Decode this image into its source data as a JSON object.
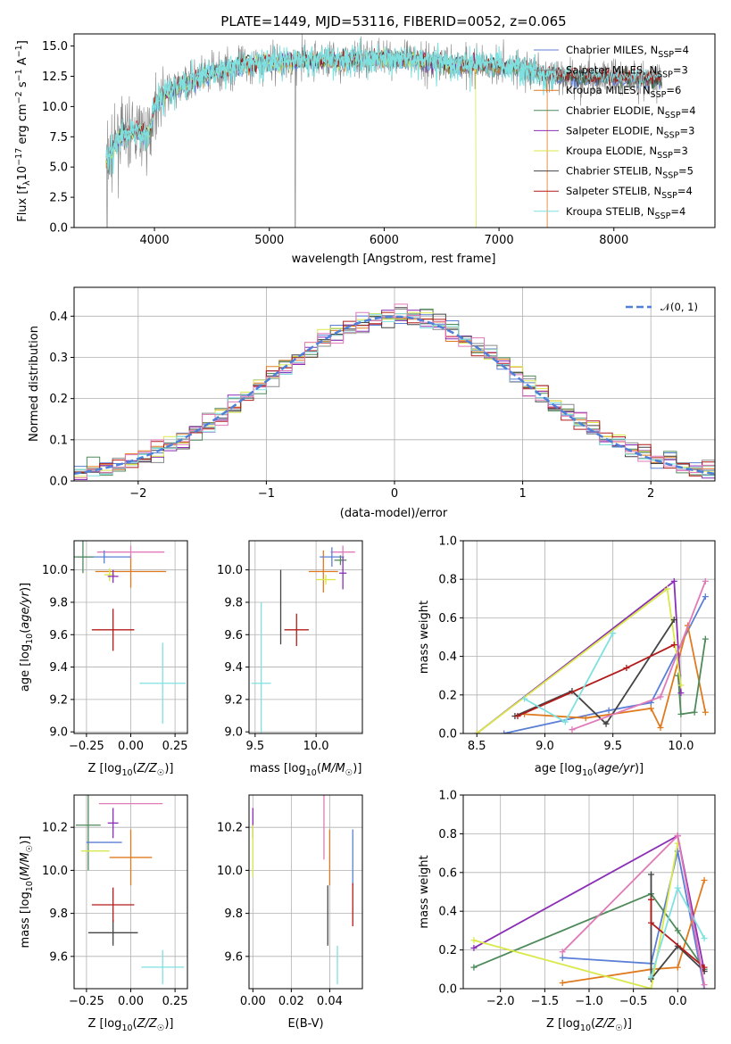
{
  "colors": {
    "chabrier_miles": "#5b7fd6",
    "salpeter_miles": "#8a8a8a",
    "kroupa_miles": "#e07a1f",
    "chabrier_elodie": "#4f8a5a",
    "salpeter_elodie": "#8b2fb5",
    "kroupa_elodie": "#d9e84a",
    "chabrier_stelib": "#444444",
    "salpeter_stelib": "#b31b1b",
    "kroupa_stelib": "#7fe0e0",
    "pink": "#e07ab8",
    "normal_curve": "#4f80d9"
  },
  "chart_data": [
    {
      "id": "spectrum",
      "type": "line",
      "title": "PLATE=1449, MJD=53116, FIBERID=0052, z=0.065",
      "xlabel": "wavelength [Angstrom, rest frame]",
      "ylabel": "Flux [f_λ 10^-17 erg cm^-2 s^-1 A^-1]",
      "xlim": [
        3300,
        8880
      ],
      "ylim": [
        0,
        16
      ],
      "xticks": [
        "4000",
        "5000",
        "6000",
        "7000",
        "8000"
      ],
      "yticks": [
        "0.0",
        "2.5",
        "5.0",
        "7.5",
        "10.0",
        "12.5",
        "15.0"
      ],
      "legend_position": "upper-right",
      "legend": [
        "Chabrier MILES, N_SSP=4",
        "Salpeter MILES, N_SSP=3",
        "Kroupa MILES, N_SSP=6",
        "Chabrier ELODIE, N_SSP=4",
        "Salpeter ELODIE, N_SSP=3",
        "Kroupa ELODIE, N_SSP=3",
        "Chabrier STELIB, N_SSP=5",
        "Salpeter STELIB, N_SSP=4",
        "Kroupa STELIB, N_SSP=4"
      ],
      "continuum": [
        [
          3580,
          5.5
        ],
        [
          3700,
          7.5
        ],
        [
          3850,
          8.0
        ],
        [
          3950,
          7.5
        ],
        [
          4000,
          10.0
        ],
        [
          4100,
          11.2
        ],
        [
          4300,
          12.0
        ],
        [
          4500,
          12.8
        ],
        [
          4800,
          13.5
        ],
        [
          5000,
          13.6
        ],
        [
          5300,
          13.8
        ],
        [
          5600,
          13.8
        ],
        [
          6000,
          14.0
        ],
        [
          6300,
          13.8
        ],
        [
          6600,
          13.5
        ],
        [
          6900,
          13.4
        ],
        [
          7200,
          13.2
        ],
        [
          7400,
          12.5
        ],
        [
          7500,
          12.6
        ],
        [
          7800,
          12.4
        ],
        [
          8100,
          12.3
        ],
        [
          8400,
          12.2
        ]
      ]
    },
    {
      "id": "residuals",
      "type": "histogram",
      "xlabel": "(data-model)/error",
      "ylabel": "Normed distribution",
      "xlim": [
        -2.5,
        2.5
      ],
      "ylim": [
        0,
        0.47
      ],
      "xticks": [
        "−2",
        "−1",
        "0",
        "1",
        "2"
      ],
      "yticks": [
        "0.0",
        "0.1",
        "0.2",
        "0.3",
        "0.4"
      ],
      "legend_position": "upper-right",
      "legend": [
        "𝒩(0, 1)"
      ]
    },
    {
      "id": "age-vs-Z",
      "type": "errorbar",
      "xlabel": "Z [log10(Z/Z☉)]",
      "ylabel": "age  [log10(age/yr)]",
      "xlim": [
        -0.32,
        0.32
      ],
      "ylim": [
        8.99,
        10.18
      ],
      "xticks": [
        "−0.25",
        "0.00",
        "0.25"
      ],
      "yticks": [
        "9.0",
        "9.2",
        "9.4",
        "9.6",
        "9.8",
        "10.0"
      ],
      "points": [
        {
          "series": "salpeter_stelib",
          "x": -0.1,
          "y": 9.63,
          "xerr": 0.12,
          "yerr": 0.13
        },
        {
          "series": "kroupa_stelib",
          "x": 0.18,
          "y": 9.3,
          "xerr": 0.13,
          "yerr": 0.25
        },
        {
          "series": "kroupa_miles",
          "x": 0.0,
          "y": 9.99,
          "xerr": 0.2,
          "yerr": 0.1
        },
        {
          "series": "pink",
          "x": 0.0,
          "y": 10.11,
          "xerr": 0.19,
          "yerr": 0.04
        },
        {
          "series": "chabrier_miles",
          "x": -0.15,
          "y": 10.08,
          "xerr": 0.15,
          "yerr": 0.04
        },
        {
          "series": "chabrier_elodie",
          "x": -0.27,
          "y": 10.08,
          "xerr": 0.06,
          "yerr": 0.1
        },
        {
          "series": "kroupa_elodie",
          "x": -0.12,
          "y": 9.97,
          "xerr": 0.03,
          "yerr": 0.04
        },
        {
          "series": "salpeter_elodie",
          "x": -0.1,
          "y": 9.96,
          "xerr": 0.03,
          "yerr": 0.04
        }
      ]
    },
    {
      "id": "age-vs-mass",
      "type": "errorbar",
      "xlabel": "mass [log10(M/M☉)]",
      "ylim": [
        8.99,
        10.18
      ],
      "xlim": [
        9.45,
        10.38
      ],
      "xticks": [
        "9.5",
        "10.0"
      ],
      "yticks": [
        "9.0",
        "9.2",
        "9.4",
        "9.6",
        "9.8",
        "10.0"
      ],
      "points": [
        {
          "series": "chabrier_stelib",
          "x": 9.71,
          "y": 9.77,
          "xerr": 0,
          "yerr": 0.23
        },
        {
          "series": "salpeter_stelib",
          "x": 9.84,
          "y": 9.63,
          "xerr": 0.1,
          "yerr": 0.1
        },
        {
          "series": "kroupa_stelib",
          "x": 9.55,
          "y": 9.3,
          "xerr": 0.08,
          "yerr": 0.5
        },
        {
          "series": "kroupa_miles",
          "x": 10.06,
          "y": 9.99,
          "xerr": 0.12,
          "yerr": 0.13
        },
        {
          "series": "pink",
          "x": 10.22,
          "y": 10.11,
          "xerr": 0.1,
          "yerr": 0.04
        },
        {
          "series": "chabrier_miles",
          "x": 10.13,
          "y": 10.08,
          "xerr": 0.1,
          "yerr": 0.06
        },
        {
          "series": "chabrier_elodie",
          "x": 10.2,
          "y": 10.06,
          "xerr": 0.05,
          "yerr": 0.03
        },
        {
          "series": "salpeter_elodie",
          "x": 10.22,
          "y": 9.98,
          "xerr": 0.03,
          "yerr": 0.1
        },
        {
          "series": "kroupa_elodie",
          "x": 10.08,
          "y": 9.94,
          "xerr": 0.08,
          "yerr": 0.03
        }
      ]
    },
    {
      "id": "massweight-vs-age",
      "type": "line",
      "xlabel": "age  [log10(age/yr)]",
      "ylabel": "mass weight",
      "xlim": [
        8.4,
        10.25
      ],
      "ylim": [
        0,
        1
      ],
      "xticks": [
        "8.5",
        "9.0",
        "9.5",
        "10.0"
      ],
      "yticks": [
        "0.0",
        "0.2",
        "0.4",
        "0.6",
        "0.8",
        "1.0"
      ],
      "series": [
        {
          "key": "chabrier_miles",
          "points": [
            [
              8.7,
              0.0
            ],
            [
              9.47,
              0.12
            ],
            [
              9.78,
              0.16
            ],
            [
              10.18,
              0.71
            ]
          ]
        },
        {
          "key": "kroupa_miles",
          "points": [
            [
              8.85,
              0.1
            ],
            [
              9.3,
              0.08
            ],
            [
              9.78,
              0.13
            ],
            [
              9.85,
              0.03
            ],
            [
              10.05,
              0.56
            ],
            [
              10.18,
              0.11
            ]
          ]
        },
        {
          "key": "chabrier_elodie",
          "points": [
            [
              9.98,
              0.3
            ],
            [
              10.0,
              0.1
            ],
            [
              10.1,
              0.11
            ],
            [
              10.18,
              0.49
            ]
          ]
        },
        {
          "key": "salpeter_elodie",
          "points": [
            [
              8.5,
              0.0
            ],
            [
              9.95,
              0.79
            ],
            [
              10.0,
              0.21
            ]
          ]
        },
        {
          "key": "kroupa_elodie",
          "points": [
            [
              8.5,
              0.0
            ],
            [
              9.9,
              0.75
            ],
            [
              10.0,
              0.25
            ]
          ]
        },
        {
          "key": "chabrier_stelib",
          "points": [
            [
              8.78,
              0.09
            ],
            [
              9.2,
              0.22
            ],
            [
              9.45,
              0.05
            ],
            [
              9.95,
              0.59
            ]
          ]
        },
        {
          "key": "salpeter_stelib",
          "points": [
            [
              8.8,
              0.09
            ],
            [
              9.6,
              0.34
            ],
            [
              9.95,
              0.46
            ]
          ]
        },
        {
          "key": "kroupa_stelib",
          "points": [
            [
              8.85,
              0.18
            ],
            [
              9.15,
              0.06
            ],
            [
              9.5,
              0.52
            ]
          ]
        },
        {
          "key": "pink",
          "points": [
            [
              9.2,
              0.02
            ],
            [
              9.85,
              0.19
            ],
            [
              10.18,
              0.79
            ]
          ]
        }
      ]
    },
    {
      "id": "mass-vs-Z",
      "type": "errorbar",
      "xlabel": "Z [log10(Z/Z☉)]",
      "ylabel": "mass [log10(M/M☉)]",
      "xlim": [
        -0.32,
        0.32
      ],
      "ylim": [
        9.45,
        10.35
      ],
      "xticks": [
        "−0.25",
        "0.00",
        "0.25"
      ],
      "yticks": [
        "9.6",
        "9.8",
        "10.0",
        "10.2"
      ],
      "points": [
        {
          "series": "pink",
          "x": 0.0,
          "y": 10.31,
          "xerr": 0.18,
          "yerr": 0.0
        },
        {
          "series": "chabrier_elodie",
          "x": -0.24,
          "y": 10.21,
          "xerr": 0.07,
          "yerr": 0.21
        },
        {
          "series": "salpeter_elodie",
          "x": -0.1,
          "y": 10.22,
          "xerr": 0.03,
          "yerr": 0.07
        },
        {
          "series": "chabrier_miles",
          "x": -0.15,
          "y": 10.13,
          "xerr": 0.1,
          "yerr": 0.0
        },
        {
          "series": "kroupa_elodie",
          "x": -0.2,
          "y": 10.09,
          "xerr": 0.08,
          "yerr": 0.0
        },
        {
          "series": "kroupa_miles",
          "x": 0.0,
          "y": 10.06,
          "xerr": 0.12,
          "yerr": 0.13
        },
        {
          "series": "chabrier_stelib",
          "x": -0.1,
          "y": 9.71,
          "xerr": 0.14,
          "yerr": 0.06
        },
        {
          "series": "salpeter_stelib",
          "x": -0.1,
          "y": 9.84,
          "xerr": 0.12,
          "yerr": 0.08
        },
        {
          "series": "kroupa_stelib",
          "x": 0.18,
          "y": 9.55,
          "xerr": 0.12,
          "yerr": 0.08
        }
      ]
    },
    {
      "id": "mass-vs-EBV",
      "type": "errorbar",
      "xlabel": "E(B-V)",
      "xlim": [
        -0.002,
        0.057
      ],
      "ylim": [
        9.45,
        10.35
      ],
      "xticks": [
        "0.00",
        "0.02",
        "0.04"
      ],
      "yticks": [
        "9.6",
        "9.8",
        "10.0",
        "10.2"
      ],
      "points": [
        {
          "series": "salpeter_elodie",
          "x": 0.0,
          "y": 10.22,
          "xerr": 0,
          "yerr": 0.07
        },
        {
          "series": "kroupa_elodie",
          "x": 0.0,
          "y": 10.09,
          "xerr": 0,
          "yerr": 0.12
        },
        {
          "series": "pink",
          "x": 0.037,
          "y": 10.2,
          "xerr": 0,
          "yerr": 0.15
        },
        {
          "series": "kroupa_miles",
          "x": 0.04,
          "y": 10.06,
          "xerr": 0,
          "yerr": 0.13
        },
        {
          "series": "chabrier_stelib",
          "x": 0.039,
          "y": 9.79,
          "xerr": 0,
          "yerr": 0.14
        },
        {
          "series": "kroupa_stelib",
          "x": 0.044,
          "y": 9.56,
          "xerr": 0,
          "yerr": 0.09
        },
        {
          "series": "chabrier_miles",
          "x": 0.052,
          "y": 10.06,
          "xerr": 0,
          "yerr": 0.13
        },
        {
          "series": "salpeter_stelib",
          "x": 0.052,
          "y": 9.84,
          "xerr": 0,
          "yerr": 0.1
        }
      ]
    },
    {
      "id": "massweight-vs-Z",
      "type": "line",
      "xlabel": "Z [log10(Z/Z☉)]",
      "ylabel": "mass weight",
      "xlim": [
        -2.42,
        0.42
      ],
      "ylim": [
        0,
        1
      ],
      "xticks": [
        "−2.0",
        "−1.5",
        "−1.0",
        "−0.5",
        "0.0"
      ],
      "yticks": [
        "0.0",
        "0.2",
        "0.4",
        "0.6",
        "0.8",
        "1.0"
      ],
      "series": [
        {
          "key": "chabrier_miles",
          "points": [
            [
              -1.3,
              0.16
            ],
            [
              -0.3,
              0.13
            ],
            [
              0.0,
              0.71
            ],
            [
              0.3,
              0.0
            ]
          ]
        },
        {
          "key": "kroupa_miles",
          "points": [
            [
              -1.3,
              0.03
            ],
            [
              -0.3,
              0.1
            ],
            [
              0.0,
              0.11
            ],
            [
              0.3,
              0.56
            ]
          ]
        },
        {
          "key": "chabrier_elodie",
          "points": [
            [
              -2.3,
              0.11
            ],
            [
              -0.3,
              0.49
            ],
            [
              0.0,
              0.3
            ],
            [
              0.3,
              0.1
            ]
          ]
        },
        {
          "key": "salpeter_elodie",
          "points": [
            [
              -2.3,
              0.21
            ],
            [
              0.0,
              0.79
            ],
            [
              0.3,
              0.09
            ]
          ]
        },
        {
          "key": "kroupa_elodie",
          "points": [
            [
              -2.3,
              0.25
            ],
            [
              -0.3,
              0.0
            ],
            [
              0.0,
              0.75
            ]
          ]
        },
        {
          "key": "chabrier_stelib",
          "points": [
            [
              -0.3,
              0.59
            ],
            [
              -0.3,
              0.05
            ],
            [
              0.0,
              0.22
            ],
            [
              0.3,
              0.09
            ]
          ]
        },
        {
          "key": "salpeter_stelib",
          "points": [
            [
              -0.3,
              0.46
            ],
            [
              -0.3,
              0.34
            ],
            [
              0.3,
              0.11
            ]
          ]
        },
        {
          "key": "kroupa_stelib",
          "points": [
            [
              -0.3,
              0.06
            ],
            [
              0.0,
              0.52
            ],
            [
              0.3,
              0.26
            ]
          ]
        },
        {
          "key": "pink",
          "points": [
            [
              -1.3,
              0.19
            ],
            [
              0.0,
              0.79
            ],
            [
              0.3,
              0.02
            ]
          ]
        }
      ]
    }
  ]
}
